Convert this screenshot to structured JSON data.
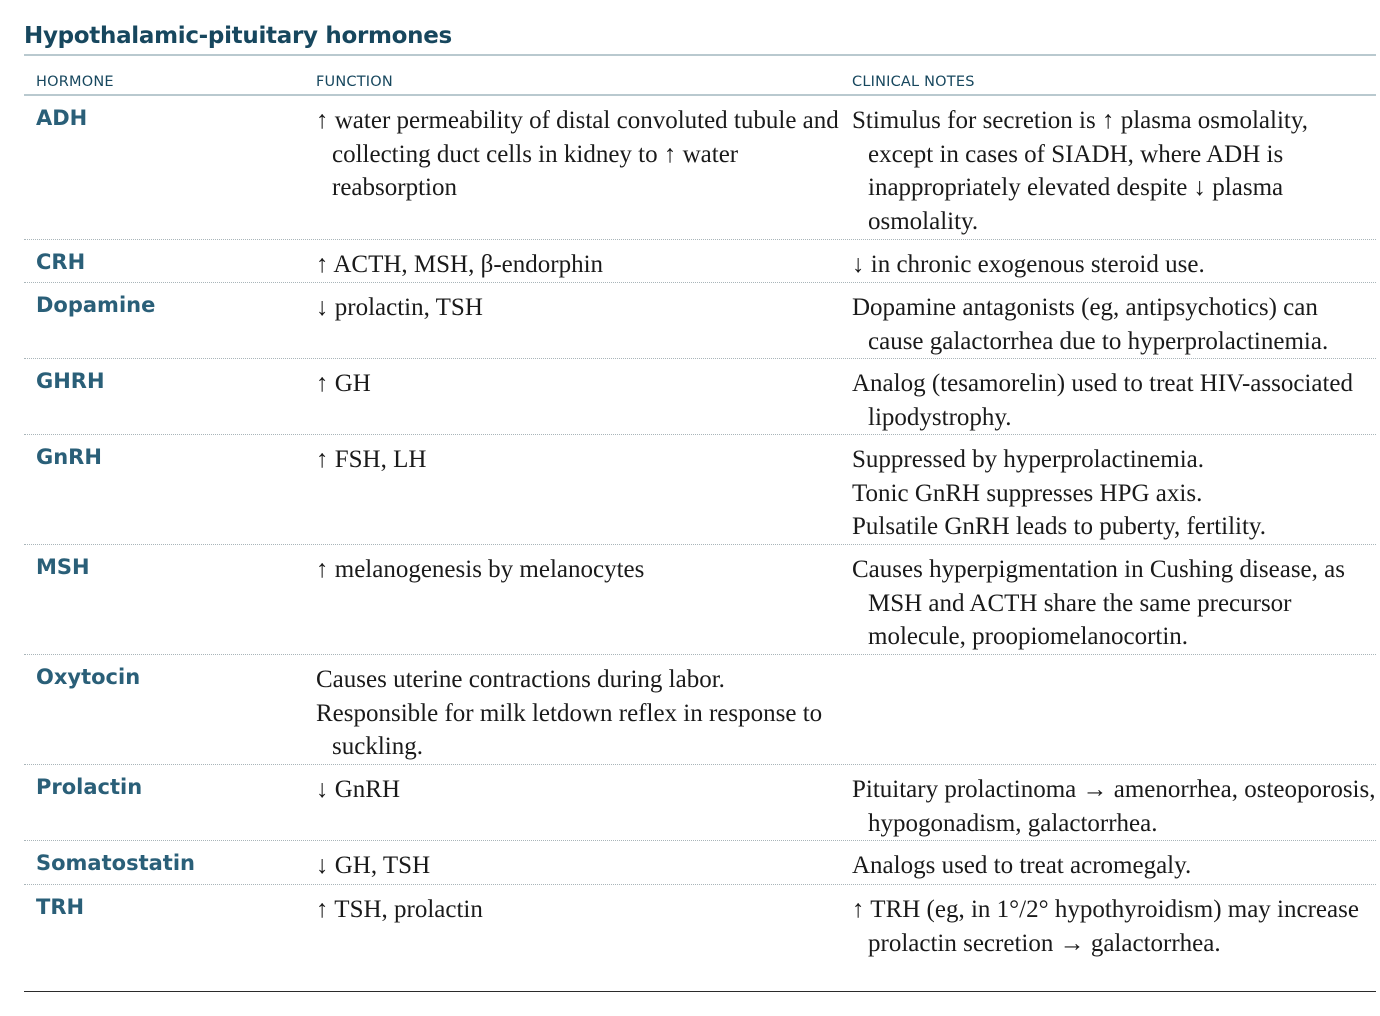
{
  "title": "Hypothalamic-pituitary hormones",
  "columns": {
    "hormone": "HORMONE",
    "function": "FUNCTION",
    "clinical": "CLINICAL NOTES"
  },
  "rows": [
    {
      "hormone": "ADH",
      "function": [
        "↑ water permeability of distal convoluted tubule and collecting duct cells in kidney to ↑ water reabsorption"
      ],
      "clinical": [
        "Stimulus for secretion is ↑ plasma osmolality, except in cases of SIADH, where ADH is inappropriately elevated despite ↓ plasma osmolality."
      ]
    },
    {
      "hormone": "CRH",
      "function": [
        "↑ ACTH, MSH, β-endorphin"
      ],
      "clinical": [
        "↓ in chronic exogenous steroid use."
      ]
    },
    {
      "hormone": "Dopamine",
      "function": [
        "↓ prolactin, TSH"
      ],
      "clinical": [
        "Dopamine antagonists (eg, antipsychotics) can cause galactorrhea due to hyperprolactinemia."
      ]
    },
    {
      "hormone": "GHRH",
      "function": [
        "↑ GH"
      ],
      "clinical": [
        "Analog (tesamorelin) used to treat HIV-associated lipodystrophy."
      ]
    },
    {
      "hormone": "GnRH",
      "function": [
        "↑ FSH, LH"
      ],
      "clinical": [
        "Suppressed by hyperprolactinemia.",
        "Tonic GnRH suppresses HPG axis.",
        "Pulsatile GnRH leads to puberty, fertility."
      ]
    },
    {
      "hormone": "MSH",
      "function": [
        "↑ melanogenesis by melanocytes"
      ],
      "clinical": [
        "Causes hyperpigmentation in Cushing disease, as MSH and ACTH share the same precursor molecule, proopiomelanocortin."
      ]
    },
    {
      "hormone": "Oxytocin",
      "function": [
        "Causes uterine contractions during labor.",
        "Responsible for milk letdown reflex in response to suckling."
      ],
      "clinical": []
    },
    {
      "hormone": "Prolactin",
      "function": [
        "↓ GnRH"
      ],
      "clinical": [
        "Pituitary prolactinoma → amenorrhea, osteoporosis, hypogonadism, galactorrhea."
      ]
    },
    {
      "hormone": "Somatostatin",
      "function": [
        "↓ GH, TSH"
      ],
      "clinical": [
        "Analogs used to treat acromegaly."
      ]
    },
    {
      "hormone": "TRH",
      "function": [
        "↑ TSH, prolactin"
      ],
      "clinical": [
        "↑ TRH (eg, in 1°/2° hypothyroidism) may increase prolactin secretion → galactorrhea."
      ]
    }
  ]
}
